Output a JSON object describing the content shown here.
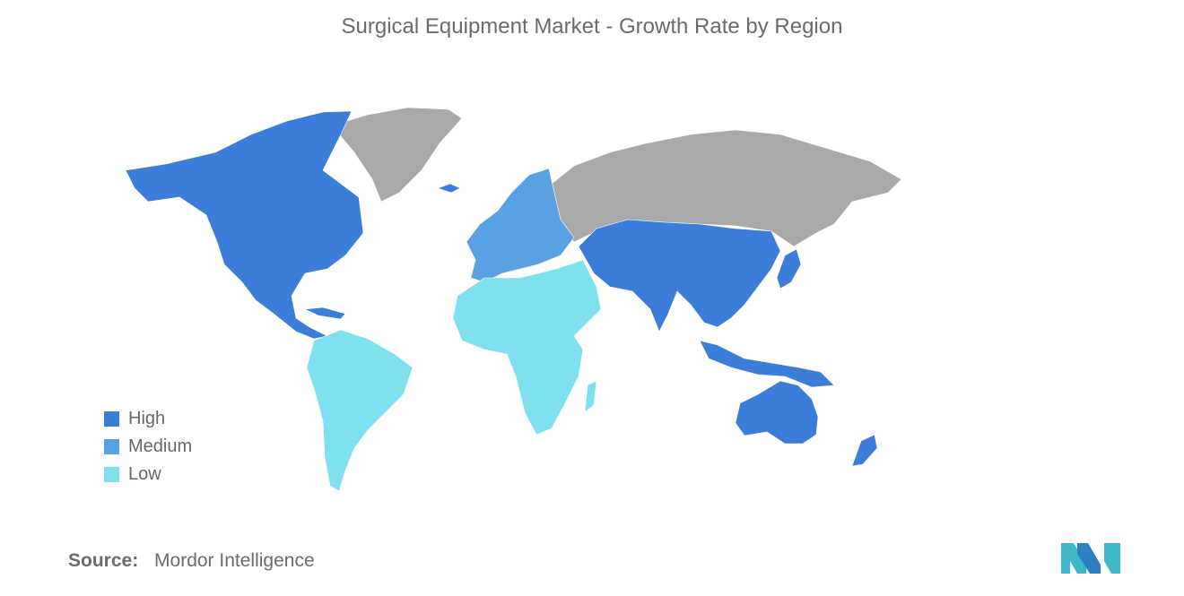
{
  "title": "Surgical Equipment Market - Growth Rate by Region",
  "legend": [
    {
      "label": "High",
      "color": "#3b7dd8"
    },
    {
      "label": "Medium",
      "color": "#5aa1e3"
    },
    {
      "label": "Low",
      "color": "#7fe0ef"
    }
  ],
  "no_data_color": "#a9a9a9",
  "regions": [
    {
      "name": "North America",
      "level": "High"
    },
    {
      "name": "Asia-Pacific",
      "level": "High"
    },
    {
      "name": "Australia and New Zealand",
      "level": "High"
    },
    {
      "name": "Europe",
      "level": "Medium"
    },
    {
      "name": "South America",
      "level": "Low"
    },
    {
      "name": "Middle East and Africa",
      "level": "Low"
    }
  ],
  "source": {
    "label": "Source:",
    "value": "Mordor Intelligence"
  },
  "logo": "mordor-intelligence-logo"
}
